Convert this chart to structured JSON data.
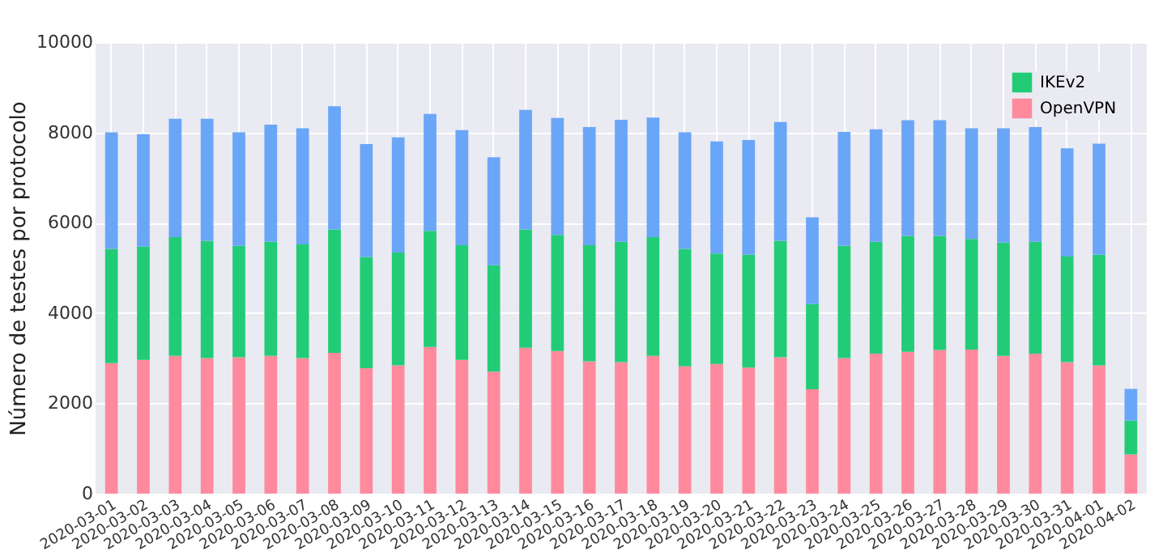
{
  "chart_data": {
    "type": "bar",
    "stacked": true,
    "ylabel": "Número de testes por protocolo",
    "categories": [
      "2020-03-01",
      "2020-03-02",
      "2020-03-03",
      "2020-03-04",
      "2020-03-05",
      "2020-03-06",
      "2020-03-07",
      "2020-03-08",
      "2020-03-09",
      "2020-03-10",
      "2020-03-11",
      "2020-03-12",
      "2020-03-13",
      "2020-03-14",
      "2020-03-15",
      "2020-03-16",
      "2020-03-17",
      "2020-03-18",
      "2020-03-19",
      "2020-03-20",
      "2020-03-21",
      "2020-03-22",
      "2020-03-23",
      "2020-03-24",
      "2020-03-25",
      "2020-03-26",
      "2020-03-27",
      "2020-03-28",
      "2020-03-29",
      "2020-03-30",
      "2020-03-31",
      "2020-04-01",
      "2020-04-02"
    ],
    "series": [
      {
        "name": "OpenVPN",
        "color": "#ff8a9e",
        "values": [
          2890,
          2960,
          3050,
          3000,
          3020,
          3050,
          3000,
          3120,
          2780,
          2840,
          3250,
          2960,
          2700,
          3230,
          3160,
          2930,
          2910,
          3050,
          2820,
          2870,
          2790,
          3020,
          2310,
          3000,
          3100,
          3140,
          3180,
          3190,
          3050,
          3100,
          2910,
          2840,
          870
        ]
      },
      {
        "name": "IKEv2",
        "color": "#22cc77",
        "values": [
          2530,
          2510,
          2630,
          2600,
          2470,
          2530,
          2520,
          2730,
          2460,
          2500,
          2570,
          2540,
          2360,
          2620,
          2570,
          2570,
          2670,
          2630,
          2600,
          2450,
          2500,
          2580,
          1890,
          2490,
          2480,
          2570,
          2530,
          2450,
          2510,
          2480,
          2340,
          2450,
          750
        ]
      },
      {
        "color": "#6aa6f8",
        "values": [
          2580,
          2490,
          2620,
          2700,
          2510,
          2590,
          2570,
          2730,
          2500,
          2550,
          2590,
          2550,
          2390,
          2650,
          2590,
          2620,
          2700,
          2650,
          2580,
          2480,
          2540,
          2630,
          1920,
          2520,
          2490,
          2560,
          2560,
          2450,
          2530,
          2540,
          2400,
          2460,
          700
        ]
      }
    ],
    "ylim": [
      0,
      10000
    ],
    "yticks": [
      0,
      2000,
      4000,
      6000,
      8000,
      10000
    ],
    "grid": true,
    "legend": "top right"
  }
}
